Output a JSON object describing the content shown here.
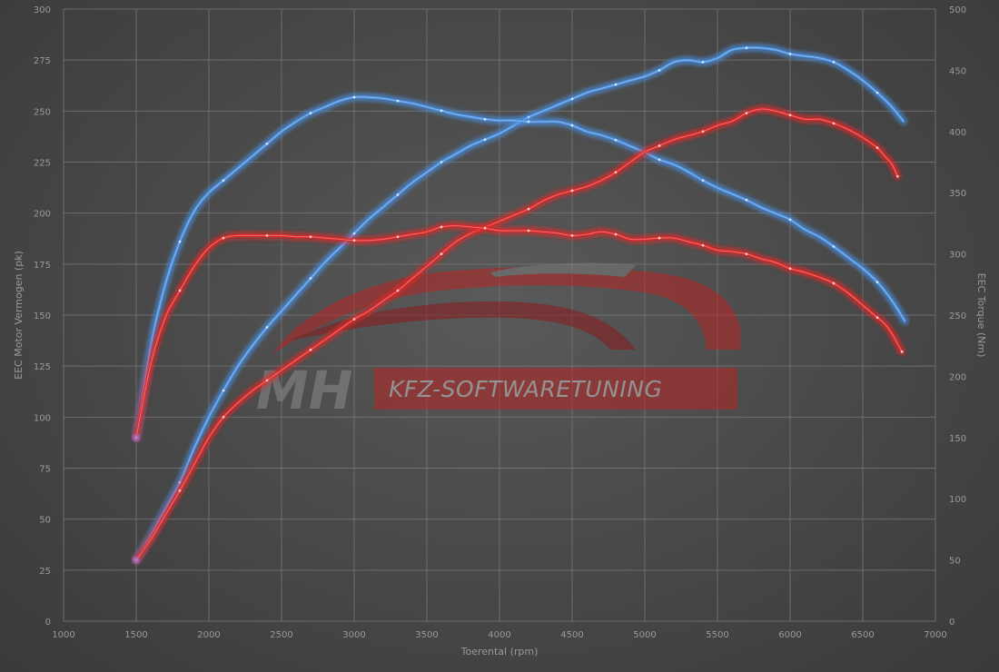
{
  "logo": {
    "mark": "MH",
    "text": "KFZ-SOFTWARETUNING"
  },
  "chart_data": {
    "type": "line",
    "xlabel": "Toerental (rpm)",
    "ylabel_left": "EEC Motor Vermogen (pk)",
    "ylabel_right": "EEC Torque (Nm)",
    "xlim": [
      1000,
      7000
    ],
    "ylim_left": [
      0,
      300
    ],
    "ylim_right": [
      0,
      500
    ],
    "x_ticks": [
      1000,
      1500,
      2000,
      2500,
      3000,
      3500,
      4000,
      4500,
      5000,
      5500,
      6000,
      6500,
      7000
    ],
    "y_left_ticks": [
      0,
      25,
      50,
      75,
      100,
      125,
      150,
      175,
      200,
      225,
      250,
      275,
      300
    ],
    "y_right_ticks": [
      0,
      50,
      100,
      150,
      200,
      250,
      300,
      350,
      400,
      450,
      500
    ],
    "grid": true,
    "colors": {
      "tuned": "#4a90e2",
      "stock": "#e02828",
      "start": "#a070c8"
    },
    "series": [
      {
        "id": "power-tuned",
        "axis": "left",
        "color": "#4a90e2",
        "points": [
          [
            1500,
            30
          ],
          [
            1600,
            42
          ],
          [
            1700,
            55
          ],
          [
            1800,
            68
          ],
          [
            1900,
            85
          ],
          [
            2000,
            100
          ],
          [
            2100,
            113
          ],
          [
            2200,
            125
          ],
          [
            2300,
            135
          ],
          [
            2400,
            144
          ],
          [
            2500,
            152
          ],
          [
            2600,
            160
          ],
          [
            2700,
            168
          ],
          [
            2800,
            176
          ],
          [
            2900,
            183
          ],
          [
            3000,
            190
          ],
          [
            3100,
            197
          ],
          [
            3200,
            203
          ],
          [
            3300,
            209
          ],
          [
            3400,
            215
          ],
          [
            3500,
            220
          ],
          [
            3600,
            225
          ],
          [
            3700,
            229
          ],
          [
            3800,
            233
          ],
          [
            3900,
            236
          ],
          [
            4000,
            239
          ],
          [
            4100,
            243
          ],
          [
            4200,
            247
          ],
          [
            4300,
            250
          ],
          [
            4400,
            253
          ],
          [
            4500,
            256
          ],
          [
            4600,
            259
          ],
          [
            4700,
            261
          ],
          [
            4800,
            263
          ],
          [
            4900,
            265
          ],
          [
            5000,
            267
          ],
          [
            5100,
            270
          ],
          [
            5200,
            274
          ],
          [
            5300,
            275
          ],
          [
            5400,
            274
          ],
          [
            5500,
            276
          ],
          [
            5600,
            280
          ],
          [
            5700,
            281
          ],
          [
            5800,
            281
          ],
          [
            5900,
            280
          ],
          [
            6000,
            278
          ],
          [
            6100,
            277
          ],
          [
            6200,
            276
          ],
          [
            6300,
            274
          ],
          [
            6400,
            270
          ],
          [
            6500,
            265
          ],
          [
            6600,
            259
          ],
          [
            6700,
            252
          ],
          [
            6780,
            245
          ]
        ]
      },
      {
        "id": "torque-tuned",
        "axis": "right",
        "color": "#4a90e2",
        "points": [
          [
            1500,
            150
          ],
          [
            1600,
            225
          ],
          [
            1700,
            275
          ],
          [
            1800,
            310
          ],
          [
            1900,
            335
          ],
          [
            2000,
            350
          ],
          [
            2100,
            360
          ],
          [
            2200,
            370
          ],
          [
            2300,
            380
          ],
          [
            2400,
            390
          ],
          [
            2500,
            400
          ],
          [
            2600,
            408
          ],
          [
            2700,
            415
          ],
          [
            2800,
            420
          ],
          [
            2900,
            425
          ],
          [
            3000,
            428
          ],
          [
            3100,
            428
          ],
          [
            3200,
            427
          ],
          [
            3300,
            425
          ],
          [
            3400,
            423
          ],
          [
            3500,
            420
          ],
          [
            3600,
            417
          ],
          [
            3700,
            414
          ],
          [
            3800,
            412
          ],
          [
            3900,
            410
          ],
          [
            4000,
            409
          ],
          [
            4100,
            409
          ],
          [
            4200,
            408
          ],
          [
            4300,
            408
          ],
          [
            4400,
            408
          ],
          [
            4500,
            405
          ],
          [
            4600,
            400
          ],
          [
            4700,
            397
          ],
          [
            4800,
            393
          ],
          [
            4900,
            388
          ],
          [
            5000,
            383
          ],
          [
            5100,
            377
          ],
          [
            5200,
            373
          ],
          [
            5300,
            367
          ],
          [
            5400,
            360
          ],
          [
            5500,
            354
          ],
          [
            5600,
            349
          ],
          [
            5700,
            344
          ],
          [
            5800,
            338
          ],
          [
            5900,
            333
          ],
          [
            6000,
            328
          ],
          [
            6100,
            320
          ],
          [
            6200,
            314
          ],
          [
            6300,
            306
          ],
          [
            6400,
            297
          ],
          [
            6500,
            288
          ],
          [
            6600,
            277
          ],
          [
            6700,
            262
          ],
          [
            6790,
            245
          ]
        ]
      },
      {
        "id": "power-stock",
        "axis": "left",
        "color": "#e02828",
        "points": [
          [
            1500,
            30
          ],
          [
            1600,
            40
          ],
          [
            1700,
            52
          ],
          [
            1800,
            64
          ],
          [
            1900,
            77
          ],
          [
            2000,
            90
          ],
          [
            2100,
            100
          ],
          [
            2200,
            107
          ],
          [
            2300,
            113
          ],
          [
            2400,
            118
          ],
          [
            2500,
            123
          ],
          [
            2600,
            128
          ],
          [
            2700,
            133
          ],
          [
            2800,
            138
          ],
          [
            2900,
            143
          ],
          [
            3000,
            148
          ],
          [
            3100,
            152
          ],
          [
            3200,
            157
          ],
          [
            3300,
            162
          ],
          [
            3400,
            168
          ],
          [
            3500,
            174
          ],
          [
            3600,
            180
          ],
          [
            3700,
            186
          ],
          [
            3800,
            190
          ],
          [
            3900,
            193
          ],
          [
            4000,
            196
          ],
          [
            4100,
            199
          ],
          [
            4200,
            202
          ],
          [
            4300,
            206
          ],
          [
            4400,
            209
          ],
          [
            4500,
            211
          ],
          [
            4600,
            213
          ],
          [
            4700,
            216
          ],
          [
            4800,
            220
          ],
          [
            4900,
            225
          ],
          [
            5000,
            230
          ],
          [
            5100,
            233
          ],
          [
            5200,
            236
          ],
          [
            5300,
            238
          ],
          [
            5400,
            240
          ],
          [
            5500,
            243
          ],
          [
            5600,
            245
          ],
          [
            5700,
            249
          ],
          [
            5800,
            251
          ],
          [
            5900,
            250
          ],
          [
            6000,
            248
          ],
          [
            6100,
            246
          ],
          [
            6200,
            246
          ],
          [
            6300,
            244
          ],
          [
            6400,
            241
          ],
          [
            6500,
            237
          ],
          [
            6600,
            232
          ],
          [
            6650,
            228
          ],
          [
            6700,
            224
          ],
          [
            6740,
            218
          ]
        ]
      },
      {
        "id": "torque-stock",
        "axis": "right",
        "color": "#e02828",
        "points": [
          [
            1500,
            150
          ],
          [
            1600,
            210
          ],
          [
            1700,
            248
          ],
          [
            1800,
            270
          ],
          [
            1900,
            290
          ],
          [
            2000,
            305
          ],
          [
            2100,
            313
          ],
          [
            2200,
            315
          ],
          [
            2300,
            315
          ],
          [
            2400,
            315
          ],
          [
            2500,
            315
          ],
          [
            2600,
            314
          ],
          [
            2700,
            314
          ],
          [
            2800,
            313
          ],
          [
            2900,
            312
          ],
          [
            3000,
            311
          ],
          [
            3100,
            311
          ],
          [
            3200,
            312
          ],
          [
            3300,
            314
          ],
          [
            3400,
            316
          ],
          [
            3500,
            318
          ],
          [
            3600,
            322
          ],
          [
            3700,
            323
          ],
          [
            3800,
            322
          ],
          [
            3900,
            321
          ],
          [
            4000,
            319
          ],
          [
            4100,
            319
          ],
          [
            4200,
            319
          ],
          [
            4300,
            318
          ],
          [
            4400,
            317
          ],
          [
            4500,
            315
          ],
          [
            4600,
            316
          ],
          [
            4700,
            318
          ],
          [
            4800,
            316
          ],
          [
            4900,
            312
          ],
          [
            5000,
            312
          ],
          [
            5100,
            313
          ],
          [
            5200,
            313
          ],
          [
            5300,
            310
          ],
          [
            5400,
            307
          ],
          [
            5500,
            303
          ],
          [
            5600,
            302
          ],
          [
            5700,
            300
          ],
          [
            5800,
            296
          ],
          [
            5900,
            293
          ],
          [
            6000,
            288
          ],
          [
            6100,
            285
          ],
          [
            6200,
            281
          ],
          [
            6300,
            276
          ],
          [
            6400,
            268
          ],
          [
            6500,
            258
          ],
          [
            6600,
            248
          ],
          [
            6650,
            243
          ],
          [
            6700,
            235
          ],
          [
            6770,
            220
          ]
        ]
      }
    ]
  }
}
